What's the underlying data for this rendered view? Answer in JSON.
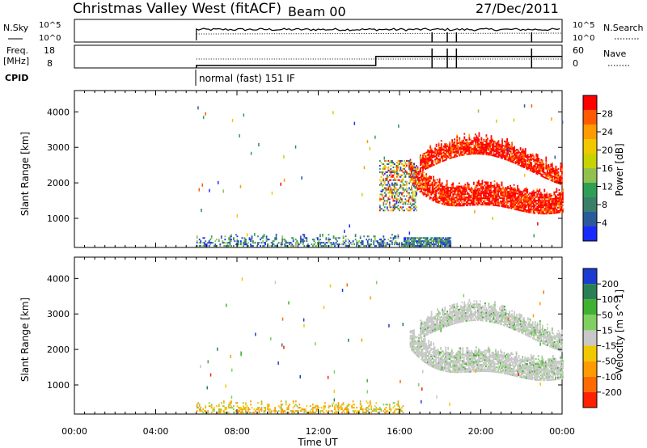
{
  "header": {
    "title": "Christmas Valley West (fitACF)",
    "beam": "Beam 00",
    "date": "27/Dec/2011"
  },
  "top_strip": {
    "nsky_label": "N.Sky",
    "nsearch_label": "N.Search",
    "nsky_ticks": [
      "10^5",
      "10^0"
    ],
    "nsearch_ticks": [
      "10^5",
      "10^0"
    ],
    "freq_label": "Freq.",
    "freq_unit": "[MHz]",
    "freq_ticks": [
      "18",
      "8"
    ],
    "nave_label": "Nave",
    "nave_ticks": [
      "60",
      "0"
    ],
    "cpid_label": "CPID",
    "cpid_text": "normal (fast) 151 IF"
  },
  "panels": {
    "ylabel": "Slant Range [km]",
    "yticks": [
      "4000",
      "3000",
      "2000",
      "1000"
    ],
    "xticks": [
      "00:00",
      "04:00",
      "08:00",
      "12:00",
      "16:00",
      "20:00",
      "00:00"
    ],
    "xlabel": "Time UT"
  },
  "power_scale": {
    "label": "Power [dB]",
    "ticks": [
      "28",
      "24",
      "20",
      "16",
      "12",
      "8",
      "4"
    ],
    "colors": [
      "#ff0000",
      "#ff5a00",
      "#ff9a00",
      "#f0c800",
      "#c8d200",
      "#90c050",
      "#2e9f55",
      "#3a7f6a",
      "#2a5a9a",
      "#1a2aff"
    ]
  },
  "velocity_scale": {
    "label": "Velocity [m s^-1]",
    "ticks": [
      "200",
      "100",
      "50",
      "15",
      "-15",
      "-50",
      "-100",
      "-200"
    ],
    "colors": [
      "#1a3cd0",
      "#2a7f55",
      "#40b030",
      "#7fd060",
      "#c8c8c8",
      "#f0c800",
      "#ff9a00",
      "#ff6a00",
      "#ff2000"
    ]
  },
  "chart_data": {
    "type": "heatmap",
    "title": "Christmas Valley West (fitACF)",
    "xlabel": "Time UT",
    "ylabel": "Slant Range [km]",
    "x_range": [
      "00:00",
      "24:00"
    ],
    "y_range": [
      180,
      4600
    ],
    "frequency_mhz": [
      {
        "time": "06:00",
        "value": 10.5
      },
      {
        "time": "14:50",
        "value": 14.5
      }
    ],
    "nave": [
      {
        "time": "06:00",
        "value": 3
      }
    ],
    "power_features": [
      {
        "name": "ground scatter",
        "t_start": 6.0,
        "t_end": 16.2,
        "r_min": 200,
        "r_max": 550,
        "db": 10
      },
      {
        "name": "low echoes",
        "t_start": 16.2,
        "t_end": 18.5,
        "r_min": 200,
        "r_max": 450,
        "db": 8
      },
      {
        "name": "band 1",
        "t_start": 16.5,
        "t_end": 24.0,
        "r_min": 1100,
        "r_max": 1900,
        "db": 28
      },
      {
        "name": "band 2",
        "t_start": 17.0,
        "t_end": 24.0,
        "r_min": 2200,
        "r_max": 3000,
        "db": 27
      },
      {
        "name": "near-range echoes 16h",
        "t_start": 15.0,
        "t_end": 16.8,
        "r_min": 1200,
        "r_max": 2600,
        "db": 9
      }
    ],
    "velocity_features": [
      {
        "name": "ground scatter",
        "t_start": 6.0,
        "t_end": 16.2,
        "r_min": 200,
        "r_max": 550,
        "v": -30
      },
      {
        "name": "band 1",
        "t_start": 16.5,
        "t_end": 24.0,
        "r_min": 1100,
        "r_max": 1900,
        "v": 0
      },
      {
        "name": "band 2",
        "t_start": 17.0,
        "t_end": 24.0,
        "r_min": 2200,
        "r_max": 3000,
        "v": 0
      }
    ]
  }
}
